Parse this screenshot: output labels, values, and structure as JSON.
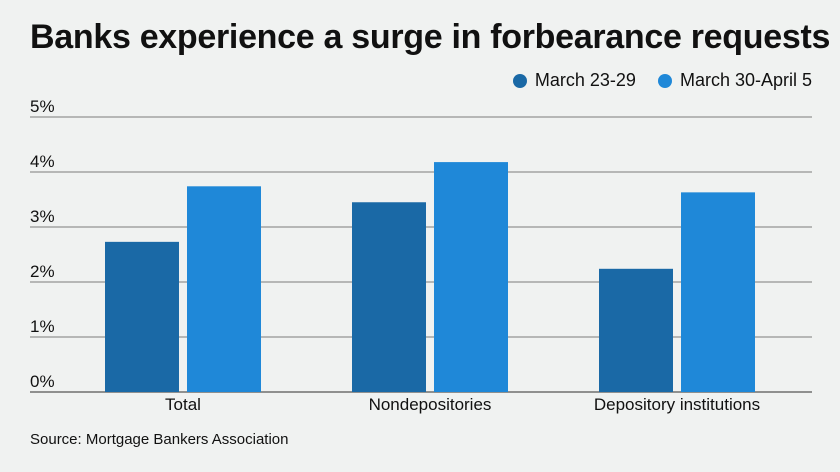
{
  "title": "Banks experience a surge in forbearance requests",
  "source": "Source: Mortgage Bankers Association",
  "colors": {
    "series1": "#1a69a6",
    "series2": "#1f88d8",
    "grid": "#555555",
    "text": "#111111"
  },
  "chart_data": {
    "type": "bar",
    "title": "Banks experience a surge in forbearance requests",
    "categories": [
      "Total",
      "Nondepositories",
      "Depository institutions"
    ],
    "series": [
      {
        "name": "March 23-29",
        "values": [
          2.73,
          3.45,
          2.24
        ]
      },
      {
        "name": "March 30-April 5",
        "values": [
          3.74,
          4.18,
          3.63
        ]
      }
    ],
    "yticks": [
      "0%",
      "1%",
      "2%",
      "3%",
      "4%",
      "5%"
    ],
    "ylim": [
      0,
      5
    ],
    "xlabel": "",
    "ylabel": "",
    "legend": "top-right",
    "grid": true
  }
}
